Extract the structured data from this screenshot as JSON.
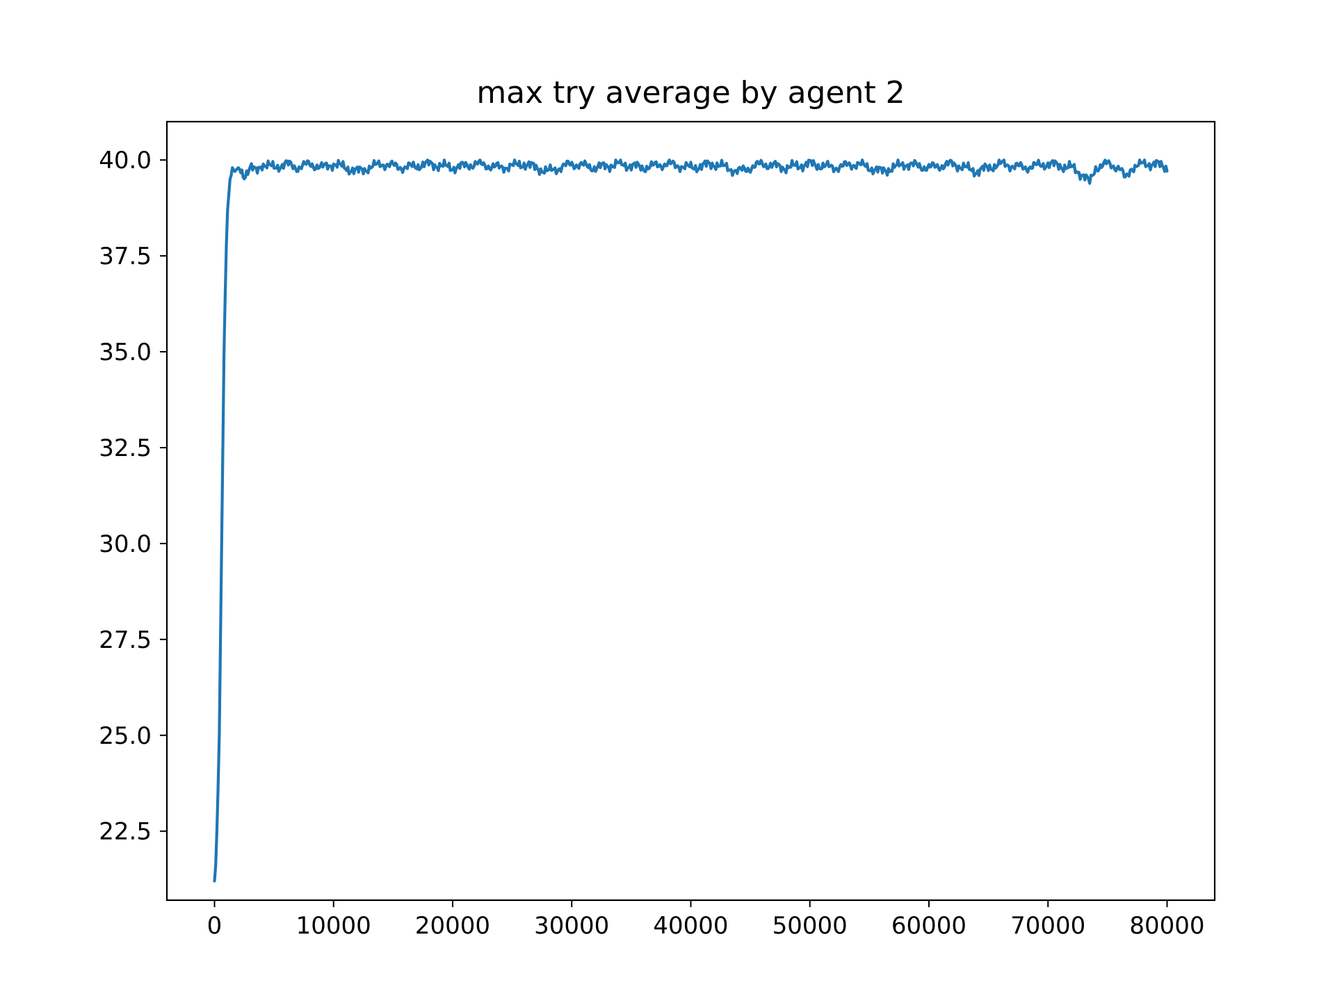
{
  "chart_data": {
    "type": "line",
    "title": "max try average by agent 2",
    "xlabel": "",
    "ylabel": "",
    "xlim": [
      -4000,
      84000
    ],
    "ylim": [
      20.7,
      41.0
    ],
    "xticks": [
      0,
      10000,
      20000,
      30000,
      40000,
      50000,
      60000,
      70000,
      80000
    ],
    "xtick_labels": [
      "0",
      "10000",
      "20000",
      "30000",
      "40000",
      "50000",
      "60000",
      "70000",
      "80000"
    ],
    "yticks": [
      22.5,
      25.0,
      27.5,
      30.0,
      32.5,
      35.0,
      37.5,
      40.0
    ],
    "ytick_labels": [
      "22.5",
      "25.0",
      "27.5",
      "30.0",
      "32.5",
      "35.0",
      "37.5",
      "40.0"
    ],
    "grid": false,
    "series": [
      {
        "color": "#1f77b4",
        "x": [
          0,
          100,
          200,
          300,
          400,
          500,
          600,
          700,
          800,
          900,
          1000,
          1100,
          1200,
          1300,
          1400,
          1500,
          1700,
          2000,
          2500,
          3000,
          3500,
          4000,
          5000,
          6000,
          7000,
          8000,
          9000,
          10000,
          12000,
          14000,
          16000,
          18000,
          20000,
          22000,
          24000,
          26000,
          28000,
          30000,
          32000,
          34000,
          36000,
          38000,
          40000,
          42000,
          44000,
          46000,
          48000,
          50000,
          52000,
          54000,
          56000,
          58000,
          60000,
          62000,
          64000,
          66000,
          68000,
          70000,
          72000,
          73000,
          73500,
          74000,
          75000,
          76000,
          76500,
          77000,
          78000,
          79000,
          80000
        ],
        "y": [
          21.2,
          21.6,
          22.5,
          23.6,
          25.0,
          27.5,
          30.0,
          32.5,
          35.0,
          36.5,
          37.8,
          38.7,
          39.1,
          39.5,
          39.6,
          39.8,
          39.7,
          39.8,
          39.6,
          39.8,
          39.7,
          39.9,
          39.8,
          39.9,
          39.8,
          39.9,
          39.8,
          39.9,
          39.7,
          39.9,
          39.8,
          39.9,
          39.8,
          39.9,
          39.8,
          39.9,
          39.7,
          39.9,
          39.8,
          39.9,
          39.8,
          39.9,
          39.8,
          39.9,
          39.7,
          39.9,
          39.8,
          39.9,
          39.8,
          39.9,
          39.7,
          39.9,
          39.8,
          39.9,
          39.7,
          39.9,
          39.8,
          39.9,
          39.8,
          39.6,
          39.4,
          39.8,
          39.9,
          39.8,
          39.5,
          39.8,
          39.9,
          39.9,
          39.8
        ]
      }
    ]
  }
}
